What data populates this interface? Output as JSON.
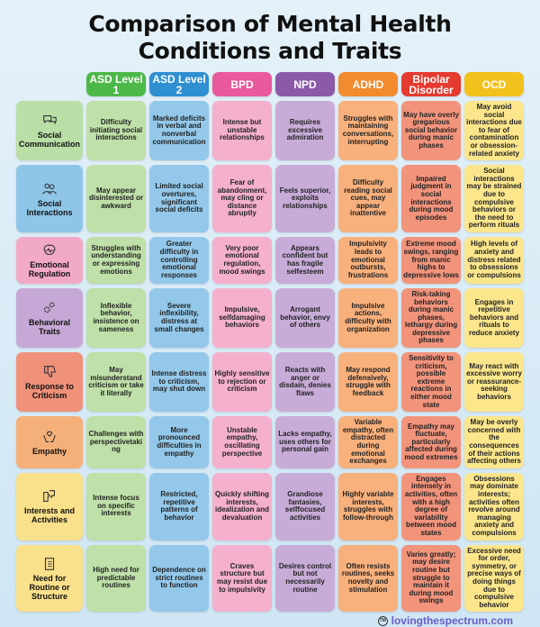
{
  "title_line1": "Comparison of Mental Health",
  "title_line2": "Conditions and Traits",
  "columns": [
    {
      "label": "ASD Level 1",
      "color": "#4cb848",
      "cell": "#bfe0a8"
    },
    {
      "label": "ASD Level 2",
      "color": "#2f8fd0",
      "cell": "#93c8ea"
    },
    {
      "label": "BPD",
      "color": "#e85a9c",
      "cell": "#f4b0cc"
    },
    {
      "label": "NPD",
      "color": "#8a5aa8",
      "cell": "#c8acd8"
    },
    {
      "label": "ADHD",
      "color": "#f28a2e",
      "cell": "#f8b07c"
    },
    {
      "label": "Bipolar Disorder",
      "color": "#e53a30",
      "cell": "#f2947c"
    },
    {
      "label": "OCD",
      "color": "#f2c21c",
      "cell": "#fbe68c"
    }
  ],
  "rows": [
    {
      "label": "Social Communication",
      "icon": "speech-bubbles-icon",
      "color": "#b9dfa6",
      "cells": [
        "Difficulty initiating social interactions",
        "Marked deficits in verbal and nonverbal communication",
        "Intense but unstable relationships",
        "Requires excessive admiration",
        "Struggles with maintaining conversations, interrupting",
        "May have overly gregarious social behavior during manic phases",
        "May avoid social interactions due to fear of contamination or obsession-related anxiety"
      ]
    },
    {
      "label": "Social Interactions",
      "icon": "people-icon",
      "color": "#8fc6e8",
      "cells": [
        "May appear disinterested or awkward",
        "Limited social overtures, significant social deficits",
        "Fear of abandonment, may cling or distance abruptly",
        "Feels superior, exploits relationships",
        "Difficulty reading social cues, may appear inattentive",
        "Impaired judgment in social interactions during mood episodes",
        "Social interactions may be strained due to compulsive behaviors or the need to perform rituals"
      ]
    },
    {
      "label": "Emotional Regulation",
      "icon": "brain-icon",
      "color": "#f2a9c6",
      "cells": [
        "Struggles with understanding or expressing emotions",
        "Greater difficulty in controlling emotional responses",
        "Very poor emotional regulation, mood swings",
        "Appears confident but has fragile selfesteem",
        "Impulsivity leads to emotional outbursts, frustrations",
        "Extreme mood swings, ranging from manic highs to depressive lows",
        "High levels of anxiety and distress related to obsessions or compulsions"
      ]
    },
    {
      "label": "Behavioral Traits",
      "icon": "gears-icon",
      "color": "#c6a8d6",
      "cells": [
        "Inflexible behavior, insistence on sameness",
        "Severe inflexibility, distress at small changes",
        "Impulsive, selfdamaging behaviors",
        "Arrogant behavior, envy of others",
        "Impulsive actions, difficulty with organization",
        "Risk-taking behaviors during manic phases, lethargy during depressive phases",
        "Engages in repetitive behaviors and rituals to reduce anxiety"
      ]
    },
    {
      "label": "Response to Criticism",
      "icon": "thumbs-down-icon",
      "color": "#f0917a",
      "cells": [
        "May misunderstand criticism or take it literally",
        "Intense distress to criticism, may shut down",
        "Highly sensitive to rejection or criticism",
        "Reacts with anger or disdain, denies flaws",
        "May respond defensively, struggle with feedback",
        "Sensitivity to criticism, possible extreme reactions in either mood state",
        "May react with excessive worry or reassurance-seeking behaviors"
      ]
    },
    {
      "label": "Empathy",
      "icon": "heart-hands-icon",
      "color": "#f5b07a",
      "cells": [
        "Challenges with perspectivetaking",
        "More pronounced difficulties in empathy",
        "Unstable empathy, oscillating perspective",
        "Lacks empathy, uses others for personal gain",
        "Variable empathy, often distracted during emotional exchanges",
        "Empathy may fluctuate, particularly affected during mood extremes",
        "May be overly concerned with the consequences of their actions affecting others"
      ]
    },
    {
      "label": "Interests and Activities",
      "icon": "puzzle-icon",
      "color": "#f9e08a",
      "cells": [
        "Intense focus on specific interests",
        "Restricted, repetitive patterns of behavior",
        "Quickly shifting interests, idealization and devaluation",
        "Grandiose fantasies, selffocused activities",
        "Highly variable interests, struggles with follow-through",
        "Engages intensely in activities, often with a high degree of variability between mood states",
        "Obsessions may dominate interests; activities often revolve around managing anxiety and compulsions"
      ]
    },
    {
      "label": "Need for Routine or Structure",
      "icon": "clipboard-icon",
      "color": "#f9e08a",
      "cells": [
        "High need for predictable routines",
        "Dependence on strict routines to function",
        "Craves structure but may resist due to impulsivity",
        "Desires control but not necessarily routine",
        "Often resists routines, seeks novelty and stimulation",
        "Varies greatly; may desire routine but struggle to maintain it during mood swings",
        "Excessive need for order, symmetry, or precise ways of doing things due to compulsive behavior"
      ]
    }
  ],
  "footer": {
    "logo": "TM",
    "site": "lovingthespectrum.com"
  }
}
